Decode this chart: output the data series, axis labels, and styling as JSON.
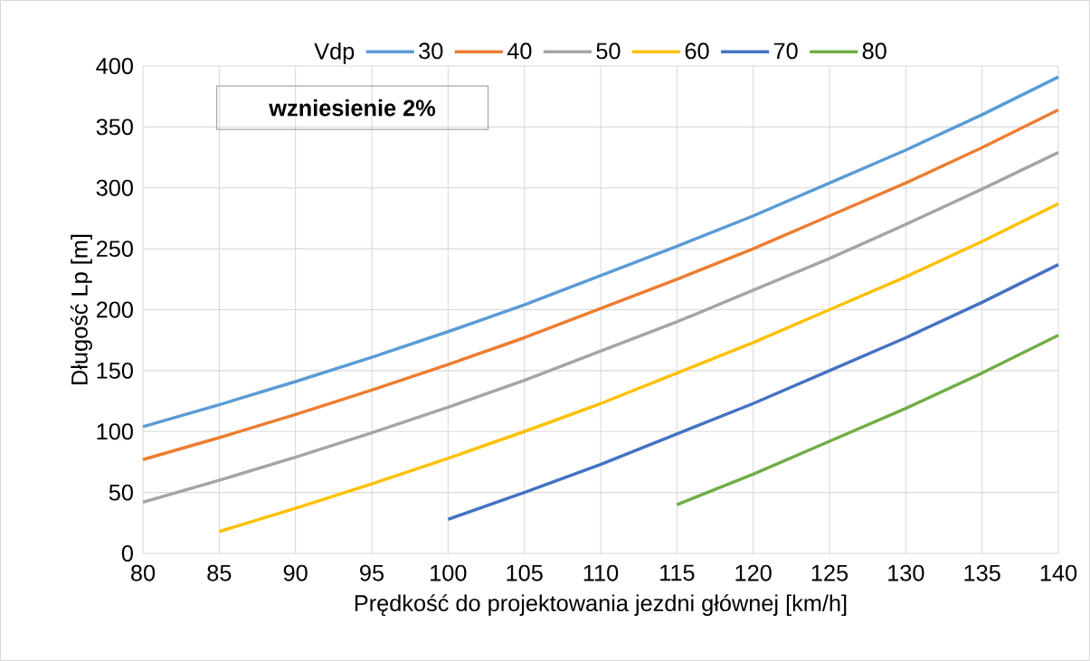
{
  "chart_data": {
    "type": "line",
    "xlabel": "Prędkość do projektowania jezdni głównej [km/h]",
    "ylabel": "Długość Lp [m]",
    "legend_title": "Vdp",
    "annotations": [
      "wzniesienie  2%"
    ],
    "xlim": [
      80,
      140
    ],
    "ylim": [
      0,
      400
    ],
    "xticks": [
      80,
      85,
      90,
      95,
      100,
      105,
      110,
      115,
      120,
      125,
      130,
      135,
      140
    ],
    "yticks": [
      0,
      50,
      100,
      150,
      200,
      250,
      300,
      350,
      400
    ],
    "grid": true,
    "legend": "top",
    "marker": "none",
    "line_style": "solid",
    "series": [
      {
        "name": "30",
        "color": "#5b9bd5",
        "x": [
          80,
          85,
          90,
          95,
          100,
          105,
          110,
          115,
          120,
          125,
          130,
          135,
          140
        ],
        "values": [
          104,
          122,
          141,
          161,
          182,
          204,
          228,
          252,
          277,
          304,
          331,
          360,
          391
        ]
      },
      {
        "name": "40",
        "color": "#ed7d31",
        "x": [
          80,
          85,
          90,
          95,
          100,
          105,
          110,
          115,
          120,
          125,
          130,
          135,
          140
        ],
        "values": [
          77,
          95,
          114,
          134,
          155,
          177,
          201,
          225,
          250,
          277,
          304,
          333,
          364
        ]
      },
      {
        "name": "50",
        "color": "#a5a5a5",
        "x": [
          80,
          85,
          90,
          95,
          100,
          105,
          110,
          115,
          120,
          125,
          130,
          135,
          140
        ],
        "values": [
          42,
          60,
          79,
          99,
          120,
          142,
          166,
          190,
          216,
          242,
          270,
          299,
          329
        ]
      },
      {
        "name": "60",
        "color": "#ffc000",
        "x": [
          85,
          90,
          95,
          100,
          105,
          110,
          115,
          120,
          125,
          130,
          135,
          140
        ],
        "values": [
          18,
          37,
          57,
          78,
          100,
          123,
          148,
          173,
          200,
          227,
          256,
          287
        ]
      },
      {
        "name": "70",
        "color": "#4472c4",
        "x": [
          100,
          105,
          110,
          115,
          120,
          125,
          130,
          135,
          140
        ],
        "values": [
          28,
          50,
          73,
          98,
          123,
          150,
          177,
          206,
          237
        ]
      },
      {
        "name": "80",
        "color": "#70ad47",
        "x": [
          115,
          120,
          125,
          130,
          135,
          140
        ],
        "values": [
          40,
          65,
          92,
          119,
          148,
          179
        ]
      }
    ]
  }
}
